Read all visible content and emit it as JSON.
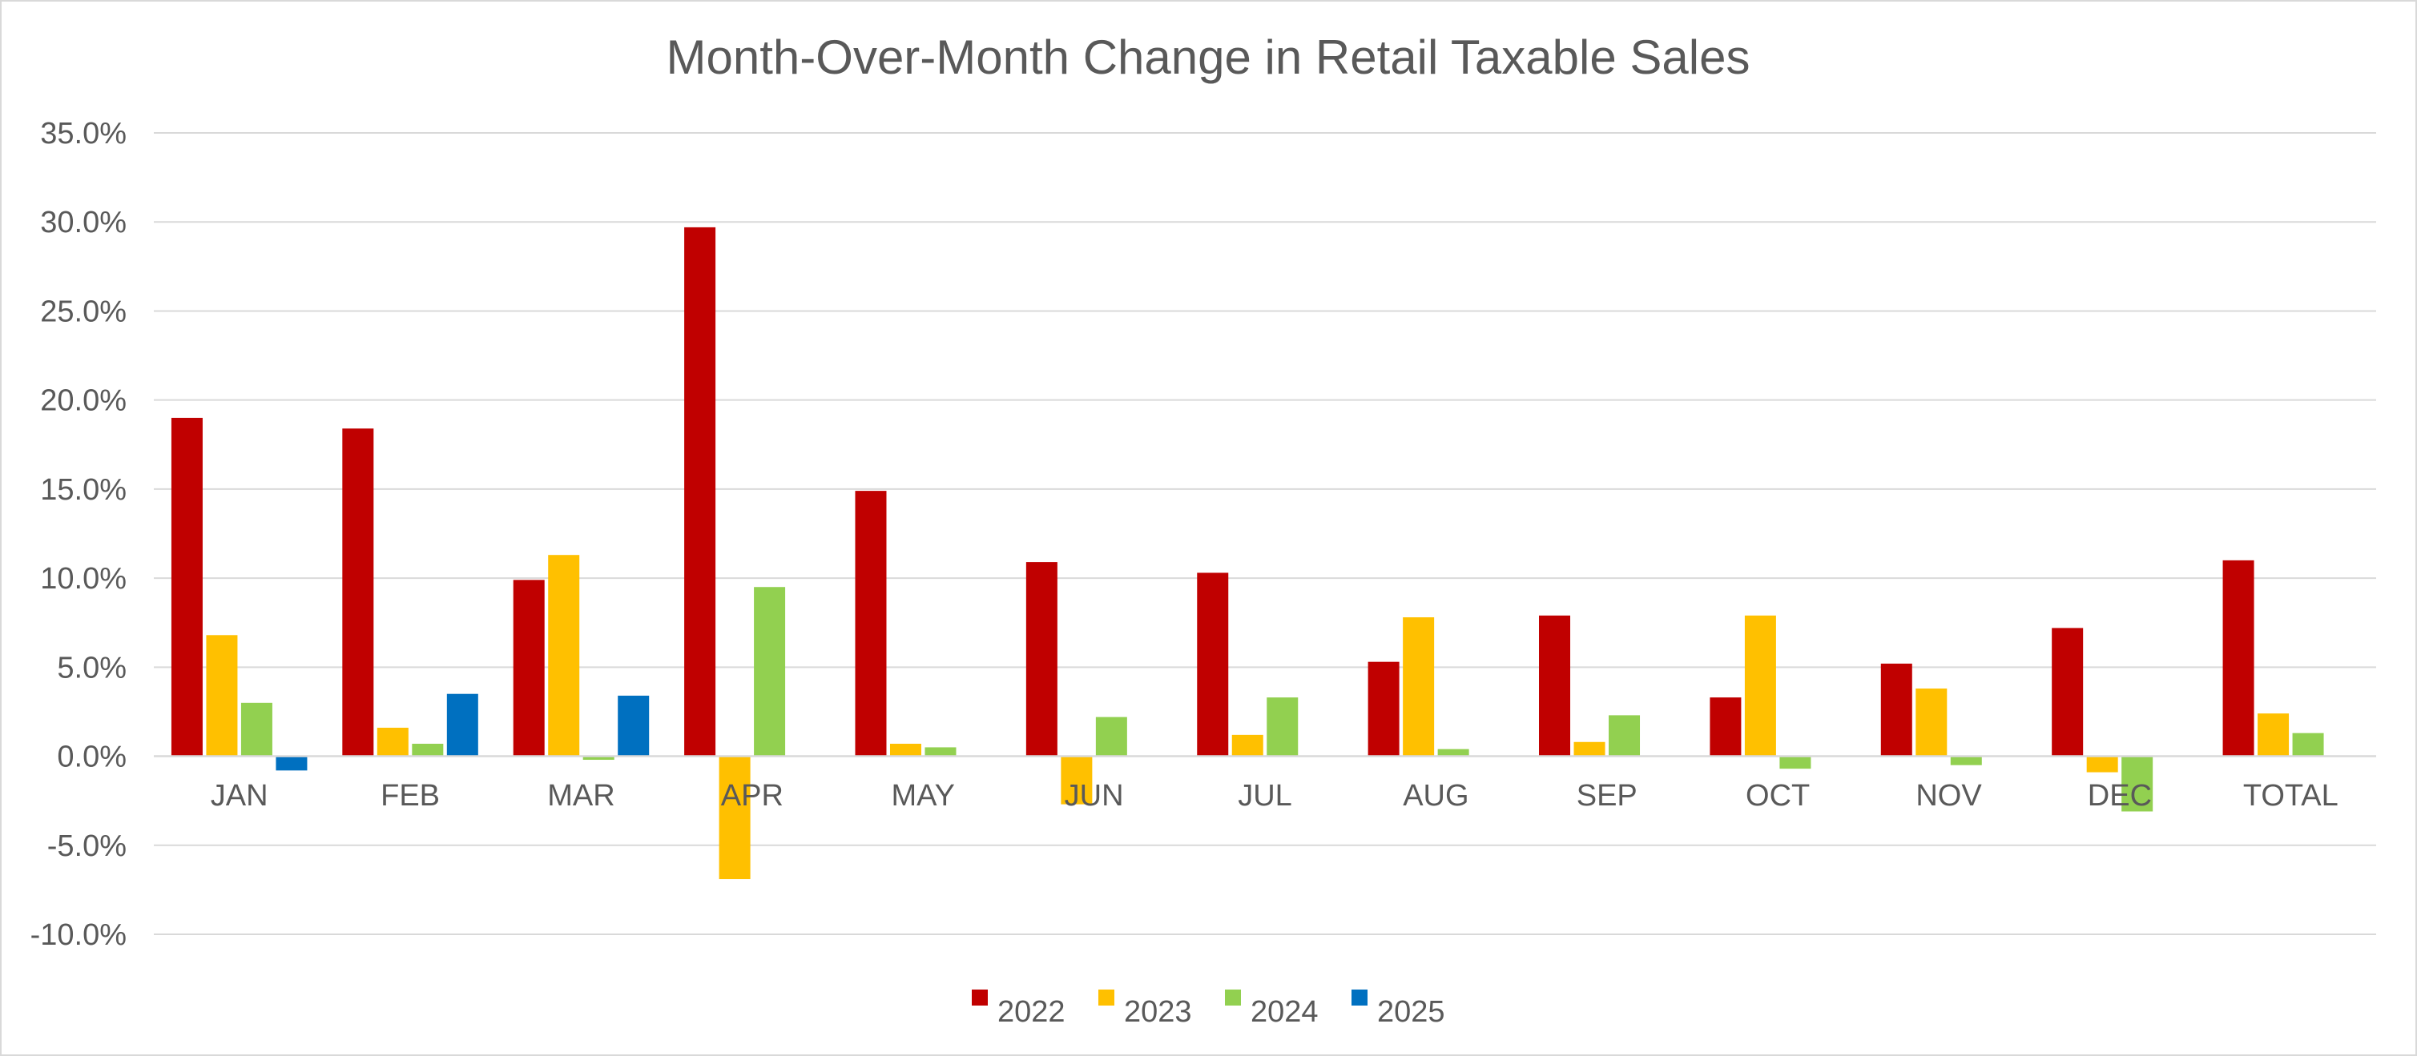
{
  "chart_data": {
    "type": "bar",
    "title": "Month-Over-Month Change in Retail Taxable Sales",
    "xlabel": "",
    "ylabel": "",
    "ylim": [
      -10,
      35
    ],
    "yticks": [
      35,
      30,
      25,
      20,
      15,
      10,
      5,
      0,
      -5,
      -10
    ],
    "ytick_labels": [
      "35.0%",
      "30.0%",
      "25.0%",
      "20.0%",
      "15.0%",
      "10.0%",
      "5.0%",
      "0.0%",
      "-5.0%",
      "-10.0%"
    ],
    "grid": true,
    "legend_position": "bottom-center",
    "categories": [
      "JAN",
      "FEB",
      "MAR",
      "APR",
      "MAY",
      "JUN",
      "JUL",
      "AUG",
      "SEP",
      "OCT",
      "NOV",
      "DEC",
      "TOTAL"
    ],
    "series": [
      {
        "name": "2022",
        "color": "#c00000",
        "values": [
          19.0,
          18.4,
          9.9,
          29.7,
          14.9,
          10.9,
          10.3,
          5.3,
          7.9,
          3.3,
          5.2,
          7.2,
          11.0
        ]
      },
      {
        "name": "2023",
        "color": "#ffc000",
        "values": [
          6.8,
          1.6,
          11.3,
          -6.9,
          0.7,
          -2.7,
          1.2,
          7.8,
          0.8,
          7.9,
          3.8,
          -0.9,
          2.4
        ]
      },
      {
        "name": "2024",
        "color": "#92d050",
        "values": [
          3.0,
          0.7,
          -0.2,
          9.5,
          0.5,
          2.2,
          3.3,
          0.4,
          2.3,
          -0.7,
          -0.5,
          -3.1,
          1.3
        ]
      },
      {
        "name": "2025",
        "color": "#0070c0",
        "values": [
          -0.8,
          3.5,
          3.4,
          null,
          null,
          null,
          null,
          null,
          null,
          null,
          null,
          null,
          null
        ]
      }
    ]
  }
}
